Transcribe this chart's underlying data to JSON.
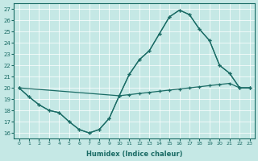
{
  "xlabel": "Humidex (Indice chaleur)",
  "bg_color": "#c5e8e5",
  "line_color": "#1a6b65",
  "xlim": [
    -0.5,
    23.5
  ],
  "ylim": [
    15.5,
    27.5
  ],
  "xticks": [
    0,
    1,
    2,
    3,
    4,
    5,
    6,
    7,
    8,
    9,
    10,
    11,
    12,
    13,
    14,
    15,
    16,
    17,
    18,
    19,
    20,
    21,
    22,
    23
  ],
  "yticks": [
    16,
    17,
    18,
    19,
    20,
    21,
    22,
    23,
    24,
    25,
    26,
    27
  ],
  "line1_x": [
    0,
    1,
    2,
    3,
    4,
    5,
    6,
    7,
    8,
    9,
    10,
    11,
    12,
    13,
    14,
    15,
    16,
    17,
    18,
    19,
    20,
    21,
    22,
    23
  ],
  "line1_y": [
    20.0,
    19.2,
    18.5,
    18.0,
    17.8,
    17.0,
    16.3,
    16.0,
    16.3,
    17.3,
    19.3,
    21.2,
    22.5,
    23.3,
    24.8,
    26.3,
    26.9,
    26.5,
    25.2,
    24.2,
    22.0,
    21.3,
    20.0,
    20.0
  ],
  "line2_x": [
    0,
    10,
    11,
    12,
    13,
    14,
    15,
    16,
    17,
    18,
    19,
    20,
    21,
    22,
    23
  ],
  "line2_y": [
    20.0,
    19.3,
    21.2,
    22.5,
    23.3,
    24.8,
    26.3,
    26.9,
    26.5,
    25.2,
    24.2,
    22.0,
    21.3,
    20.0,
    20.0
  ],
  "line3_x": [
    0,
    1,
    2,
    3,
    4,
    5,
    6,
    7,
    8,
    9,
    10,
    11,
    12,
    13,
    14,
    15,
    16,
    17,
    18,
    19,
    20,
    21,
    22,
    23
  ],
  "line3_y": [
    20.0,
    19.2,
    18.5,
    18.0,
    17.8,
    17.0,
    16.3,
    16.0,
    16.3,
    17.3,
    19.3,
    19.4,
    19.5,
    19.6,
    19.7,
    19.8,
    19.9,
    20.0,
    20.1,
    20.2,
    20.3,
    20.4,
    20.0,
    20.0
  ]
}
